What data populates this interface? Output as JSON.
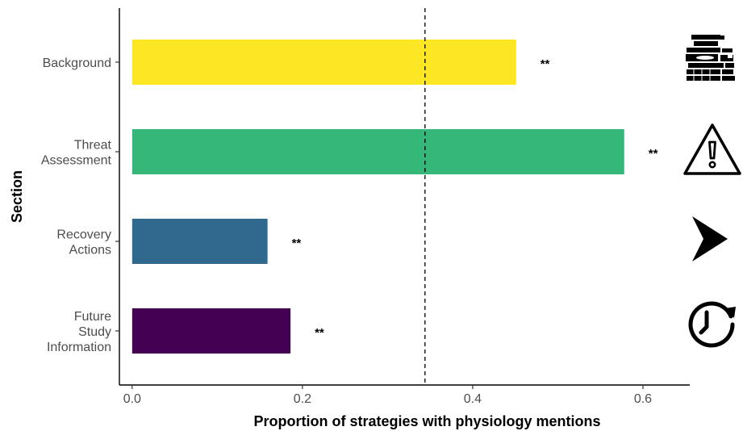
{
  "chart_data": {
    "type": "bar",
    "orientation": "horizontal",
    "title": "",
    "xlabel": "Proportion of strategies with physiology mentions",
    "ylabel": "Section",
    "xlim": [
      -0.015,
      0.655
    ],
    "x_ticks": [
      0.0,
      0.2,
      0.4,
      0.6
    ],
    "x_tick_labels": [
      "0.0",
      "0.2",
      "0.4",
      "0.6"
    ],
    "grid": false,
    "legend": "none",
    "reference_line": {
      "x": 0.344,
      "style": "dashed"
    },
    "categories": [
      {
        "label_lines": [
          "Background"
        ],
        "value": 0.451,
        "color": "#FDE725",
        "annotation": "**",
        "icon": "books-icon"
      },
      {
        "label_lines": [
          "Threat",
          "Assessment"
        ],
        "value": 0.578,
        "color": "#35B779",
        "annotation": "**",
        "icon": "warning-icon"
      },
      {
        "label_lines": [
          "Recovery",
          "Actions"
        ],
        "value": 0.159,
        "color": "#31688E",
        "annotation": "**",
        "icon": "chevron-right-icon"
      },
      {
        "label_lines": [
          "Future",
          "Study",
          "Information"
        ],
        "value": 0.186,
        "color": "#440154",
        "annotation": "**",
        "icon": "clock-history-icon"
      }
    ]
  }
}
